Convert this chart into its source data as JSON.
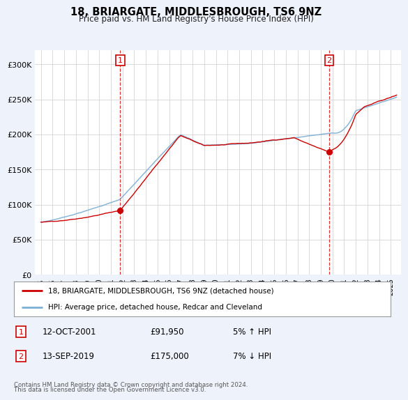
{
  "title": "18, BRIARGATE, MIDDLESBROUGH, TS6 9NZ",
  "subtitle": "Price paid vs. HM Land Registry's House Price Index (HPI)",
  "ylim": [
    0,
    320000
  ],
  "yticks": [
    0,
    50000,
    100000,
    150000,
    200000,
    250000,
    300000
  ],
  "ytick_labels": [
    "£0",
    "£50K",
    "£100K",
    "£150K",
    "£200K",
    "£250K",
    "£300K"
  ],
  "background_color": "#eef2fa",
  "plot_bg_color": "#ffffff",
  "hpi_color": "#7bafd4",
  "price_color": "#cc0000",
  "marker1_date_x": 2001.79,
  "marker1_price": 91950,
  "marker2_date_x": 2019.71,
  "marker2_price": 175000,
  "legend_line1": "18, BRIARGATE, MIDDLESBROUGH, TS6 9NZ (detached house)",
  "legend_line2": "HPI: Average price, detached house, Redcar and Cleveland",
  "footer1": "Contains HM Land Registry data © Crown copyright and database right 2024.",
  "footer2": "This data is licensed under the Open Government Licence v3.0.",
  "table": [
    {
      "num": "1",
      "date": "12-OCT-2001",
      "price": "£91,950",
      "hpi": "5% ↑ HPI"
    },
    {
      "num": "2",
      "date": "13-SEP-2019",
      "price": "£175,000",
      "hpi": "7% ↓ HPI"
    }
  ],
  "xlim_left": 1994.5,
  "xlim_right": 2025.9
}
